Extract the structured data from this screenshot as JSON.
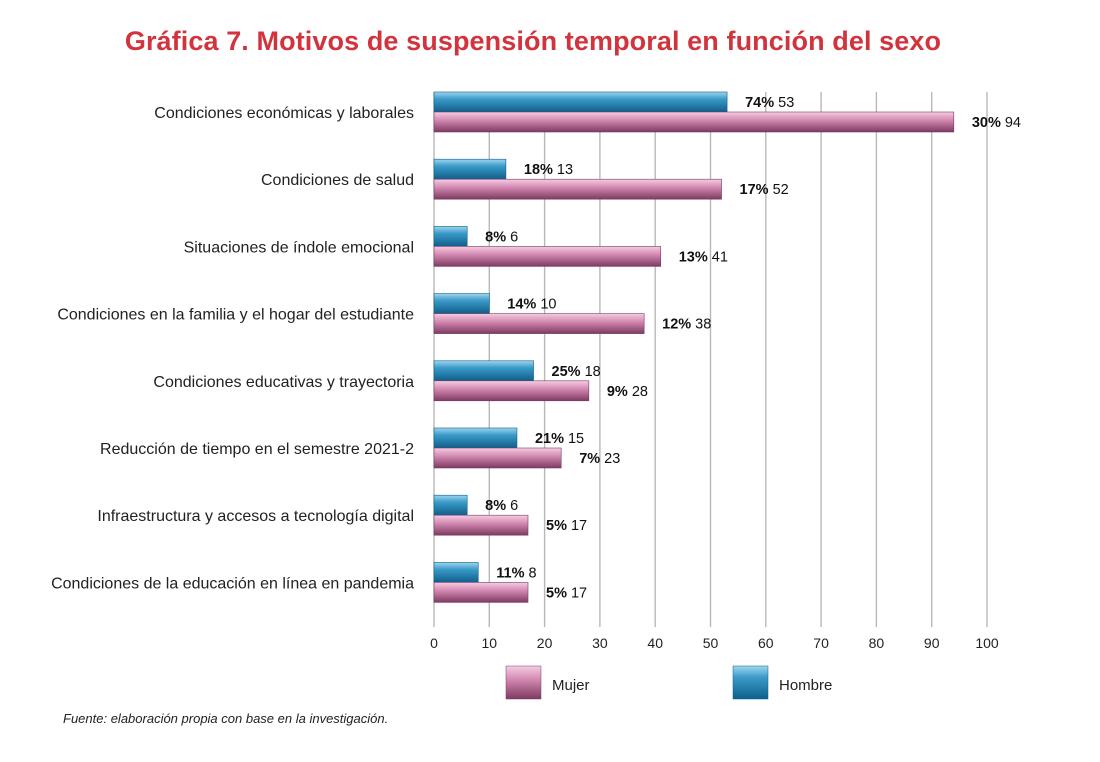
{
  "chart_data": {
    "type": "bar",
    "orientation": "horizontal",
    "title": "Gráfica 7. Motivos de suspensión temporal en función del sexo",
    "categories": [
      "Condiciones económicas y laborales",
      "Condiciones de salud",
      "Situaciones de índole emocional",
      "Condiciones en la familia y el hogar del estudiante",
      "Condiciones educativas y trayectoria",
      "Reducción de tiempo en el semestre 2021-2",
      "Infraestructura y accesos a tecnología digital",
      "Condiciones de la educación en línea en pandemia"
    ],
    "series": [
      {
        "name": "Hombre",
        "values": [
          53,
          13,
          6,
          10,
          18,
          15,
          6,
          8
        ],
        "percent_labels": [
          "74%",
          "18%",
          "8%",
          "14%",
          "25%",
          "21%",
          "8%",
          "11%"
        ],
        "color": "#1f7fb0"
      },
      {
        "name": "Mujer",
        "values": [
          94,
          52,
          41,
          38,
          28,
          23,
          17,
          17
        ],
        "percent_labels": [
          "30%",
          "17%",
          "13%",
          "12%",
          "9%",
          "7%",
          "5%",
          "5%"
        ],
        "color": "#c66a9a"
      }
    ],
    "xlim": [
      0,
      100
    ],
    "xticks": [
      "0",
      "10",
      "20",
      "30",
      "40",
      "50",
      "60",
      "70",
      "80",
      "90",
      "100"
    ],
    "grid": true,
    "legend_position": "bottom"
  },
  "legend": {
    "mujer": "Mujer",
    "hombre": "Hombre"
  },
  "footnote": "Fuente: elaboración propia con base en la investigación."
}
